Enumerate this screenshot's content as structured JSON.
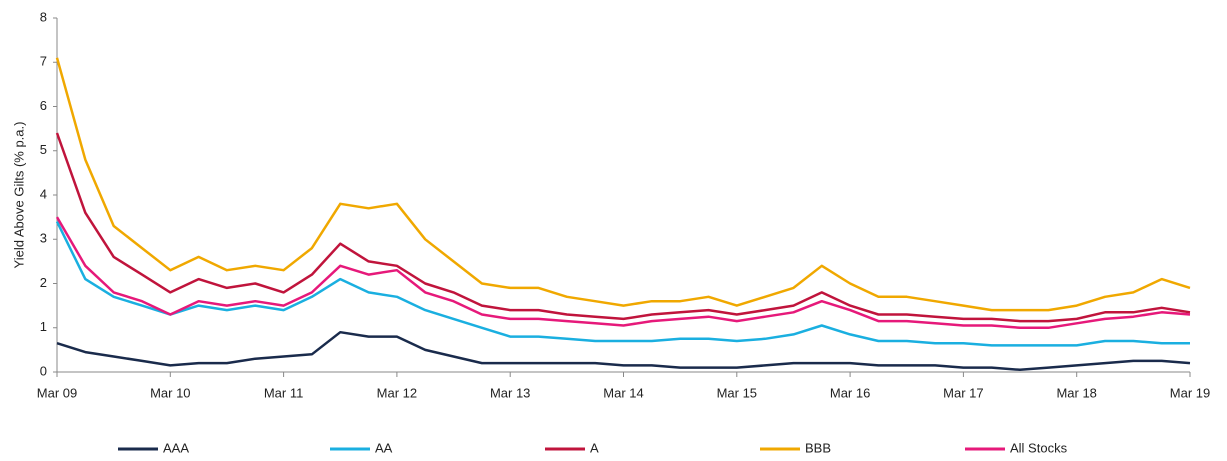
{
  "chart_data": {
    "type": "line",
    "y_label": "Yield Above Gilts (% p.a.)",
    "categories": [
      "Mar 09",
      null,
      null,
      null,
      "Mar 10",
      null,
      null,
      null,
      "Mar 11",
      null,
      null,
      null,
      "Mar 12",
      null,
      null,
      null,
      "Mar 13",
      null,
      null,
      null,
      "Mar 14",
      null,
      null,
      null,
      "Mar 15",
      null,
      null,
      null,
      "Mar 16",
      null,
      null,
      null,
      "Mar 17",
      null,
      null,
      null,
      "Mar 18",
      null,
      null,
      null,
      "Mar 19"
    ],
    "series": [
      {
        "name": "AAA",
        "color": "#1a2b4c",
        "values": [
          0.65,
          0.45,
          0.35,
          0.25,
          0.15,
          0.2,
          0.2,
          0.3,
          0.35,
          0.4,
          0.9,
          0.8,
          0.8,
          0.5,
          0.35,
          0.2,
          0.2,
          0.2,
          0.2,
          0.2,
          0.15,
          0.15,
          0.1,
          0.1,
          0.1,
          0.15,
          0.2,
          0.2,
          0.2,
          0.15,
          0.15,
          0.15,
          0.1,
          0.1,
          0.05,
          0.1,
          0.15,
          0.2,
          0.25,
          0.25,
          0.2
        ]
      },
      {
        "name": "AA",
        "color": "#1aafe0",
        "values": [
          3.4,
          2.1,
          1.7,
          1.5,
          1.3,
          1.5,
          1.4,
          1.5,
          1.4,
          1.7,
          2.1,
          1.8,
          1.7,
          1.4,
          1.2,
          1.0,
          0.8,
          0.8,
          0.75,
          0.7,
          0.7,
          0.7,
          0.75,
          0.75,
          0.7,
          0.75,
          0.85,
          1.05,
          0.85,
          0.7,
          0.7,
          0.65,
          0.65,
          0.6,
          0.6,
          0.6,
          0.6,
          0.7,
          0.7,
          0.65,
          0.65
        ]
      },
      {
        "name": "A",
        "color": "#c0143c",
        "values": [
          5.4,
          3.6,
          2.6,
          2.2,
          1.8,
          2.1,
          1.9,
          2.0,
          1.8,
          2.2,
          2.9,
          2.5,
          2.4,
          2.0,
          1.8,
          1.5,
          1.4,
          1.4,
          1.3,
          1.25,
          1.2,
          1.3,
          1.35,
          1.4,
          1.3,
          1.4,
          1.5,
          1.8,
          1.5,
          1.3,
          1.3,
          1.25,
          1.2,
          1.2,
          1.15,
          1.15,
          1.2,
          1.35,
          1.35,
          1.45,
          1.35
        ]
      },
      {
        "name": "BBB",
        "color": "#f0a800",
        "values": [
          7.1,
          4.8,
          3.3,
          2.8,
          2.3,
          2.6,
          2.3,
          2.4,
          2.3,
          2.8,
          3.8,
          3.7,
          3.8,
          3.0,
          2.5,
          2.0,
          1.9,
          1.9,
          1.7,
          1.6,
          1.5,
          1.6,
          1.6,
          1.7,
          1.5,
          1.7,
          1.9,
          2.4,
          2.0,
          1.7,
          1.7,
          1.6,
          1.5,
          1.4,
          1.4,
          1.4,
          1.5,
          1.7,
          1.8,
          2.1,
          1.9
        ]
      },
      {
        "name": "All Stocks",
        "color": "#e6197a",
        "values": [
          3.5,
          2.4,
          1.8,
          1.6,
          1.3,
          1.6,
          1.5,
          1.6,
          1.5,
          1.8,
          2.4,
          2.2,
          2.3,
          1.8,
          1.6,
          1.3,
          1.2,
          1.2,
          1.15,
          1.1,
          1.05,
          1.15,
          1.2,
          1.25,
          1.15,
          1.25,
          1.35,
          1.6,
          1.4,
          1.15,
          1.15,
          1.1,
          1.05,
          1.05,
          1.0,
          1.0,
          1.1,
          1.2,
          1.25,
          1.35,
          1.3
        ]
      }
    ],
    "ylim": [
      0,
      8
    ],
    "yticks": [
      0,
      1,
      2,
      3,
      4,
      5,
      6,
      7,
      8
    ],
    "grid": false,
    "legend": "bottom"
  }
}
